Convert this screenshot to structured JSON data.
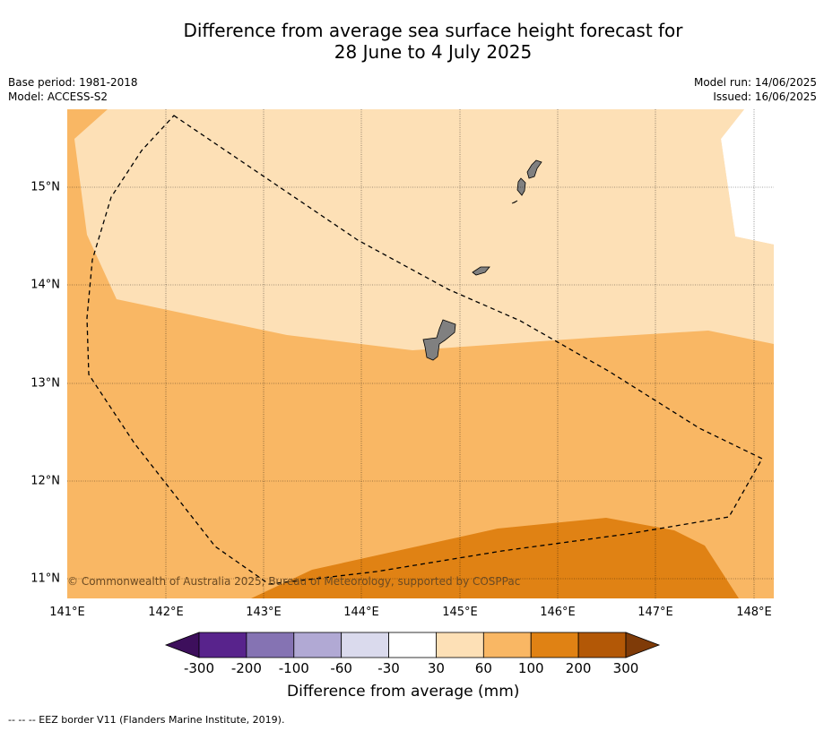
{
  "title_line1": "Difference from average sea surface height forecast for",
  "title_line2": "28 June to 4 July 2025",
  "base_period": "Base period: 1981-2018",
  "model": "Model: ACCESS-S2",
  "model_run": "Model run: 14/06/2025",
  "issued": "Issued: 16/06/2025",
  "copyright": "© Commonwealth of Australia 2025, Bureau of Meteorology, supported by COSPPac",
  "latitude_labels": [
    "15°N",
    "14°N",
    "13°N",
    "12°N",
    "11°N"
  ],
  "longitude_labels": [
    "141°E",
    "142°E",
    "143°E",
    "144°E",
    "145°E",
    "146°E",
    "147°E",
    "148°E"
  ],
  "colorbar": {
    "title": "Difference from average (mm)",
    "tick_labels": [
      "-300",
      "-200",
      "-100",
      "-60",
      "-30",
      "30",
      "60",
      "100",
      "200",
      "300"
    ],
    "colors": [
      "#3d0f5c",
      "#58238c",
      "#8573b3",
      "#b1a9d4",
      "#dadaed",
      "#ffffff",
      "#fde0b6",
      "#f9b764",
      "#e08214",
      "#b35806",
      "#7f3b08"
    ]
  },
  "footnote": "--  --  -- EEZ border V11 (Flanders Marine Institute, 2019).",
  "map_colors": {
    "band_30_60": "#fde0b6",
    "band_60_100": "#f9b764",
    "band_100_200": "#e08214",
    "land": "#808080"
  }
}
